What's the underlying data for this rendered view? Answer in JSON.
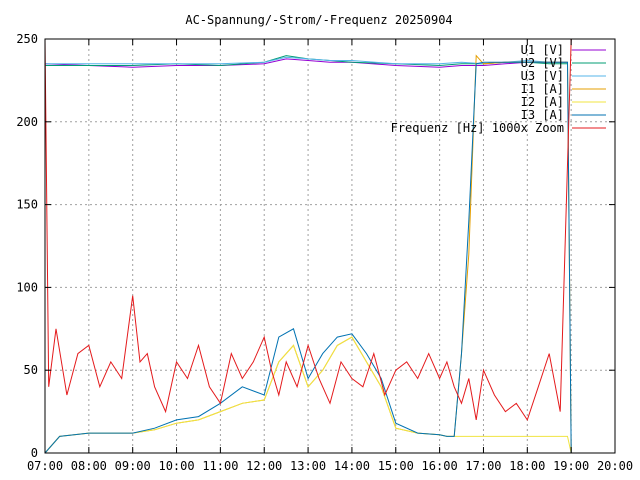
{
  "chart_data": {
    "type": "line",
    "title": "AC-Spannung/-Strom/-Frequenz 20250904",
    "xlabel": "",
    "ylabel": "",
    "xlim": [
      "07:00",
      "20:00"
    ],
    "ylim": [
      0,
      250
    ],
    "grid": true,
    "legend_position": "top-right",
    "x_ticks": [
      "07:00",
      "08:00",
      "09:00",
      "10:00",
      "11:00",
      "12:00",
      "13:00",
      "14:00",
      "15:00",
      "16:00",
      "17:00",
      "18:00",
      "19:00",
      "20:00"
    ],
    "y_ticks": [
      0,
      50,
      100,
      150,
      200,
      250
    ],
    "series": [
      {
        "name": "U1 [V]",
        "color": "#9400d3",
        "x": [
          "07:00",
          "08:00",
          "09:00",
          "10:00",
          "11:00",
          "12:00",
          "12:30",
          "13:00",
          "13:30",
          "14:00",
          "15:00",
          "16:00",
          "16:30",
          "17:00",
          "17:30",
          "18:00",
          "18:30",
          "18:55"
        ],
        "y": [
          235,
          234,
          233,
          234,
          234,
          235,
          238,
          237,
          236,
          236,
          234,
          233,
          234,
          234,
          235,
          236,
          236,
          236
        ]
      },
      {
        "name": "U2 [V]",
        "color": "#009e73",
        "x": [
          "07:00",
          "08:00",
          "09:00",
          "10:00",
          "11:00",
          "12:00",
          "12:30",
          "13:00",
          "13:30",
          "14:00",
          "15:00",
          "16:00",
          "16:30",
          "17:00",
          "17:30",
          "18:00",
          "18:30",
          "18:55"
        ],
        "y": [
          234,
          234,
          234,
          235,
          234,
          236,
          240,
          238,
          237,
          236,
          235,
          234,
          235,
          235,
          236,
          236,
          235,
          235
        ]
      },
      {
        "name": "U3 [V]",
        "color": "#56b4e9",
        "x": [
          "07:00",
          "08:00",
          "09:00",
          "10:00",
          "11:00",
          "12:00",
          "12:30",
          "13:00",
          "13:30",
          "14:00",
          "15:00",
          "16:00",
          "16:30",
          "17:00",
          "17:30",
          "18:00",
          "18:30",
          "18:55"
        ],
        "y": [
          235,
          235,
          235,
          235,
          235,
          236,
          239,
          238,
          237,
          237,
          235,
          235,
          236,
          235,
          236,
          237,
          236,
          236
        ]
      },
      {
        "name": "I1 [A]",
        "color": "#e69f00",
        "x": [
          "07:00",
          "07:20",
          "08:00",
          "09:00",
          "09:30",
          "10:00",
          "10:30",
          "11:00",
          "11:30",
          "12:00",
          "12:20",
          "12:40",
          "13:00",
          "13:20",
          "13:40",
          "14:00",
          "14:20",
          "14:40",
          "15:00",
          "15:30",
          "16:00",
          "16:10",
          "16:20",
          "16:30",
          "16:40",
          "16:50",
          "17:00",
          "17:30",
          "18:00",
          "18:30",
          "18:55",
          "19:00"
        ],
        "y": [
          0,
          10,
          12,
          12,
          14,
          18,
          20,
          25,
          30,
          32,
          55,
          65,
          40,
          50,
          65,
          70,
          55,
          40,
          15,
          12,
          11,
          10,
          10,
          60,
          120,
          240,
          235,
          236,
          236,
          236,
          236,
          0
        ]
      },
      {
        "name": "I2 [A]",
        "color": "#f0e442",
        "x": [
          "07:00",
          "07:20",
          "08:00",
          "09:00",
          "09:30",
          "10:00",
          "10:30",
          "11:00",
          "11:30",
          "12:00",
          "12:20",
          "12:40",
          "13:00",
          "13:20",
          "13:40",
          "14:00",
          "14:20",
          "14:40",
          "15:00",
          "15:30",
          "16:00",
          "16:10",
          "16:20",
          "16:30",
          "16:40",
          "16:50",
          "17:00",
          "17:30",
          "18:00",
          "18:30",
          "18:55",
          "19:00"
        ],
        "y": [
          0,
          10,
          12,
          12,
          14,
          18,
          20,
          25,
          30,
          32,
          55,
          65,
          40,
          50,
          65,
          70,
          55,
          40,
          15,
          12,
          11,
          10,
          10,
          10,
          10,
          10,
          10,
          10,
          10,
          10,
          10,
          0
        ]
      },
      {
        "name": "I3 [A]",
        "color": "#0072b2",
        "x": [
          "07:00",
          "07:20",
          "08:00",
          "09:00",
          "09:30",
          "10:00",
          "10:30",
          "11:00",
          "11:30",
          "12:00",
          "12:20",
          "12:40",
          "13:00",
          "13:20",
          "13:40",
          "14:00",
          "14:20",
          "14:40",
          "15:00",
          "15:30",
          "16:00",
          "16:10",
          "16:20",
          "16:30",
          "16:40",
          "16:50",
          "17:00",
          "17:30",
          "18:00",
          "18:30",
          "18:55",
          "19:00"
        ],
        "y": [
          0,
          10,
          12,
          12,
          15,
          20,
          22,
          30,
          40,
          35,
          70,
          75,
          45,
          60,
          70,
          72,
          60,
          45,
          18,
          12,
          11,
          10,
          10,
          60,
          140,
          235,
          236,
          236,
          236,
          236,
          236,
          0
        ]
      },
      {
        "name": "Frequenz [Hz] 1000x Zoom",
        "color": "#e41a1c",
        "x": [
          "07:00",
          "07:05",
          "07:15",
          "07:30",
          "07:45",
          "08:00",
          "08:15",
          "08:30",
          "08:45",
          "09:00",
          "09:10",
          "09:20",
          "09:30",
          "09:45",
          "10:00",
          "10:15",
          "10:30",
          "10:45",
          "11:00",
          "11:15",
          "11:30",
          "11:45",
          "12:00",
          "12:10",
          "12:20",
          "12:30",
          "12:45",
          "13:00",
          "13:15",
          "13:30",
          "13:45",
          "14:00",
          "14:15",
          "14:30",
          "14:45",
          "15:00",
          "15:15",
          "15:30",
          "15:45",
          "16:00",
          "16:10",
          "16:20",
          "16:30",
          "16:40",
          "16:50",
          "17:00",
          "17:15",
          "17:30",
          "17:45",
          "18:00",
          "18:15",
          "18:30",
          "18:45",
          "19:00"
        ],
        "y": [
          250,
          40,
          75,
          35,
          60,
          65,
          40,
          55,
          45,
          95,
          55,
          60,
          40,
          25,
          55,
          45,
          65,
          40,
          30,
          60,
          45,
          55,
          70,
          50,
          35,
          55,
          40,
          65,
          45,
          30,
          55,
          45,
          40,
          60,
          35,
          50,
          55,
          45,
          60,
          45,
          55,
          40,
          30,
          45,
          20,
          50,
          35,
          25,
          30,
          20,
          40,
          60,
          25,
          250
        ]
      }
    ]
  }
}
